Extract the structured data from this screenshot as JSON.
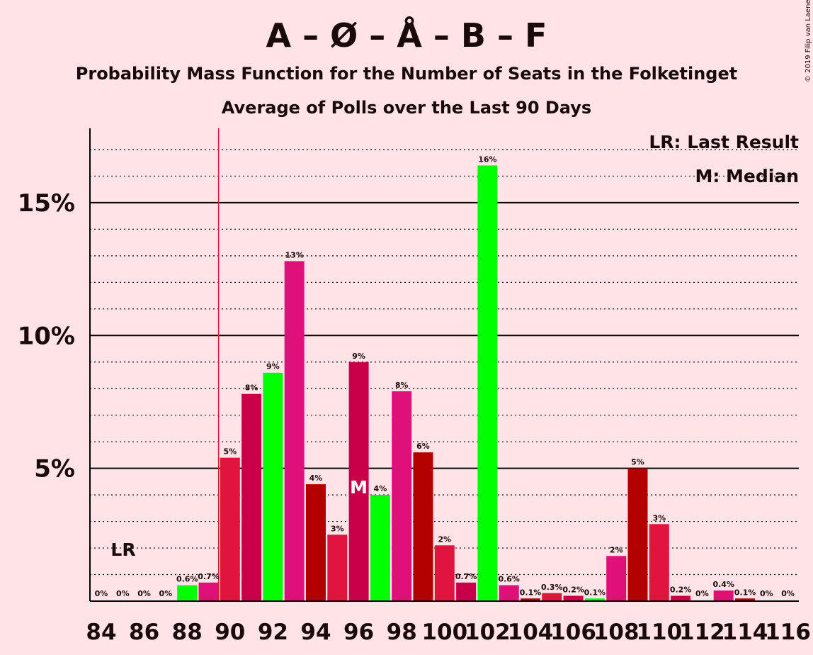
{
  "chart_data": {
    "type": "bar",
    "title": "A – Ø – Å – B – F",
    "subtitle": "Probability Mass Function for the Number of Seats in the Folketinget",
    "subtitle2": "Average of Polls over the Last 90 Days",
    "xlabel": "",
    "ylabel": "",
    "x": [
      84,
      85,
      86,
      87,
      88,
      89,
      90,
      91,
      92,
      93,
      94,
      95,
      96,
      97,
      98,
      99,
      100,
      101,
      102,
      103,
      104,
      105,
      106,
      107,
      108,
      109,
      110,
      111,
      112,
      113,
      114,
      115,
      116
    ],
    "values": [
      0,
      0,
      0,
      0,
      0.6,
      0.7,
      5.4,
      7.8,
      8.6,
      12.8,
      4.4,
      2.5,
      9.0,
      4.0,
      7.9,
      5.6,
      2.1,
      0.7,
      16.4,
      0.6,
      0.1,
      0.3,
      0.2,
      0.1,
      1.7,
      5.0,
      2.9,
      0.2,
      0,
      0.4,
      0.1,
      0,
      0
    ],
    "labels": [
      "0%",
      "0%",
      "0%",
      "0%",
      "0.6%",
      "0.7%",
      "5%",
      "8%",
      "9%",
      "13%",
      "4%",
      "3%",
      "9%",
      "4%",
      "8%",
      "6%",
      "2%",
      "0.7%",
      "16%",
      "0.6%",
      "0.1%",
      "0.3%",
      "0.2%",
      "0.1%",
      "2%",
      "5%",
      "3%",
      "0.2%",
      "0%",
      "0.4%",
      "0.1%",
      "0%",
      "0%"
    ],
    "colors": [
      "#E0107A",
      "#B30000",
      "#E0143C",
      "#C8004A",
      "#00FF00",
      "#E0107A",
      "#E0143C",
      "#C8004A",
      "#00FF00",
      "#E0107A",
      "#B30000",
      "#E0143C",
      "#C8004A",
      "#00FF00",
      "#E0107A",
      "#B30000",
      "#E0143C",
      "#C8004A",
      "#00FF00",
      "#E0107A",
      "#B30000",
      "#E0143C",
      "#C8004A",
      "#00FF00",
      "#E0107A",
      "#B30000",
      "#E0143C",
      "#C8004A",
      "#00FF00",
      "#E0107A",
      "#B30000",
      "#E0143C",
      "#C8004A"
    ],
    "x_tick_labels": [
      "84",
      "86",
      "88",
      "90",
      "92",
      "94",
      "96",
      "98",
      "100",
      "102",
      "104",
      "106",
      "108",
      "110",
      "112",
      "114",
      "116"
    ],
    "y_ticks": [
      5,
      10,
      15
    ],
    "y_tick_labels": [
      "5%",
      "10%",
      "15%"
    ],
    "ylim": [
      0,
      17.8
    ],
    "minor_grid_step": 1,
    "last_result_seat": 90,
    "last_result_label": "LR",
    "median_seat": 96,
    "median_label": "M",
    "legend": [
      "LR: Last Result",
      "M: Median"
    ],
    "legend_position": "top-right",
    "copyright": "© 2019 Filip van Laenen"
  }
}
